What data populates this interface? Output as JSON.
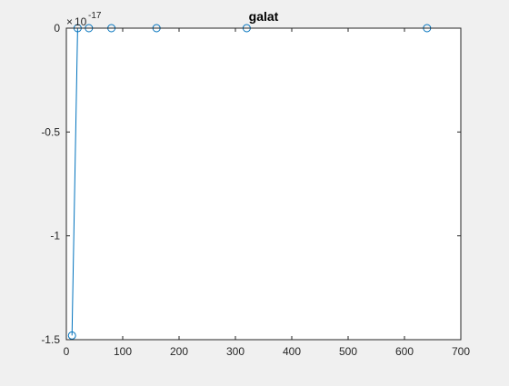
{
  "chart_data": {
    "type": "line",
    "title": "galat",
    "xlabel": "",
    "ylabel": "",
    "y_exponent_label": "10",
    "y_exponent_power": "-17",
    "y_exponent_times": "×",
    "xlim": [
      0,
      700
    ],
    "ylim": [
      -1.5,
      0
    ],
    "grid": false,
    "x_ticks": [
      0,
      100,
      200,
      300,
      400,
      500,
      600,
      700
    ],
    "x_tick_labels": [
      "0",
      "100",
      "200",
      "300",
      "400",
      "500",
      "600",
      "700"
    ],
    "y_ticks": [
      -1.5,
      -1,
      -0.5,
      0
    ],
    "y_tick_labels": [
      "-1.5",
      "-1",
      "-0.5",
      "0"
    ],
    "series": [
      {
        "color": "#0072BD",
        "marker": "circle",
        "x": [
          10,
          20,
          40,
          80,
          160,
          320,
          640
        ],
        "y": [
          -1.48,
          0,
          0,
          0,
          0,
          0,
          0
        ]
      }
    ]
  }
}
